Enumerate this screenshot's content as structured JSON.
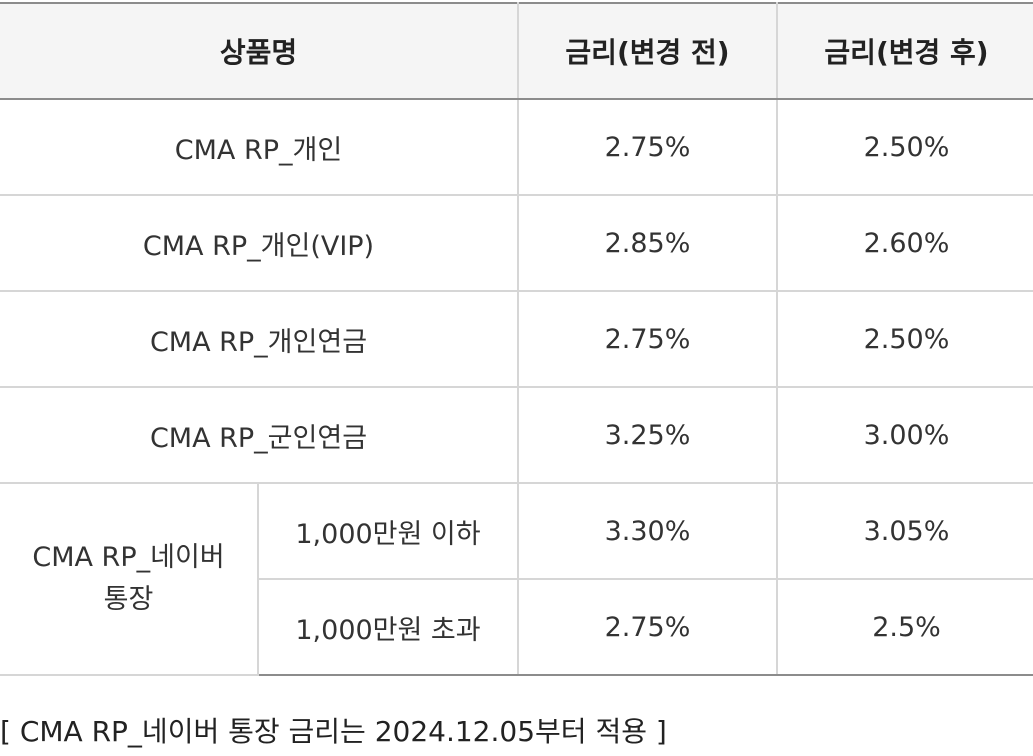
{
  "table": {
    "headers": {
      "product": "상품명",
      "rate_before": "금리(변경 전)",
      "rate_after": "금리(변경 후)"
    },
    "rows": [
      {
        "product": "CMA RP_개인",
        "rate_before": "2.75%",
        "rate_after": "2.50%"
      },
      {
        "product": "CMA RP_개인(VIP)",
        "rate_before": "2.85%",
        "rate_after": "2.60%"
      },
      {
        "product": "CMA RP_개인연금",
        "rate_before": "2.75%",
        "rate_after": "2.50%"
      },
      {
        "product": "CMA RP_군인연금",
        "rate_before": "3.25%",
        "rate_after": "3.00%"
      }
    ],
    "naver": {
      "product_line1": "CMA RP_네이버",
      "product_line2": "통장",
      "tiers": [
        {
          "tier": "1,000만원 이하",
          "rate_before": "3.30%",
          "rate_after": "3.05%"
        },
        {
          "tier": "1,000만원 초과",
          "rate_before": "2.75%",
          "rate_after": "2.5%"
        }
      ]
    }
  },
  "footnote": "[ CMA RP_네이버 통장 금리는 2024.12.05부터 적용 ]"
}
